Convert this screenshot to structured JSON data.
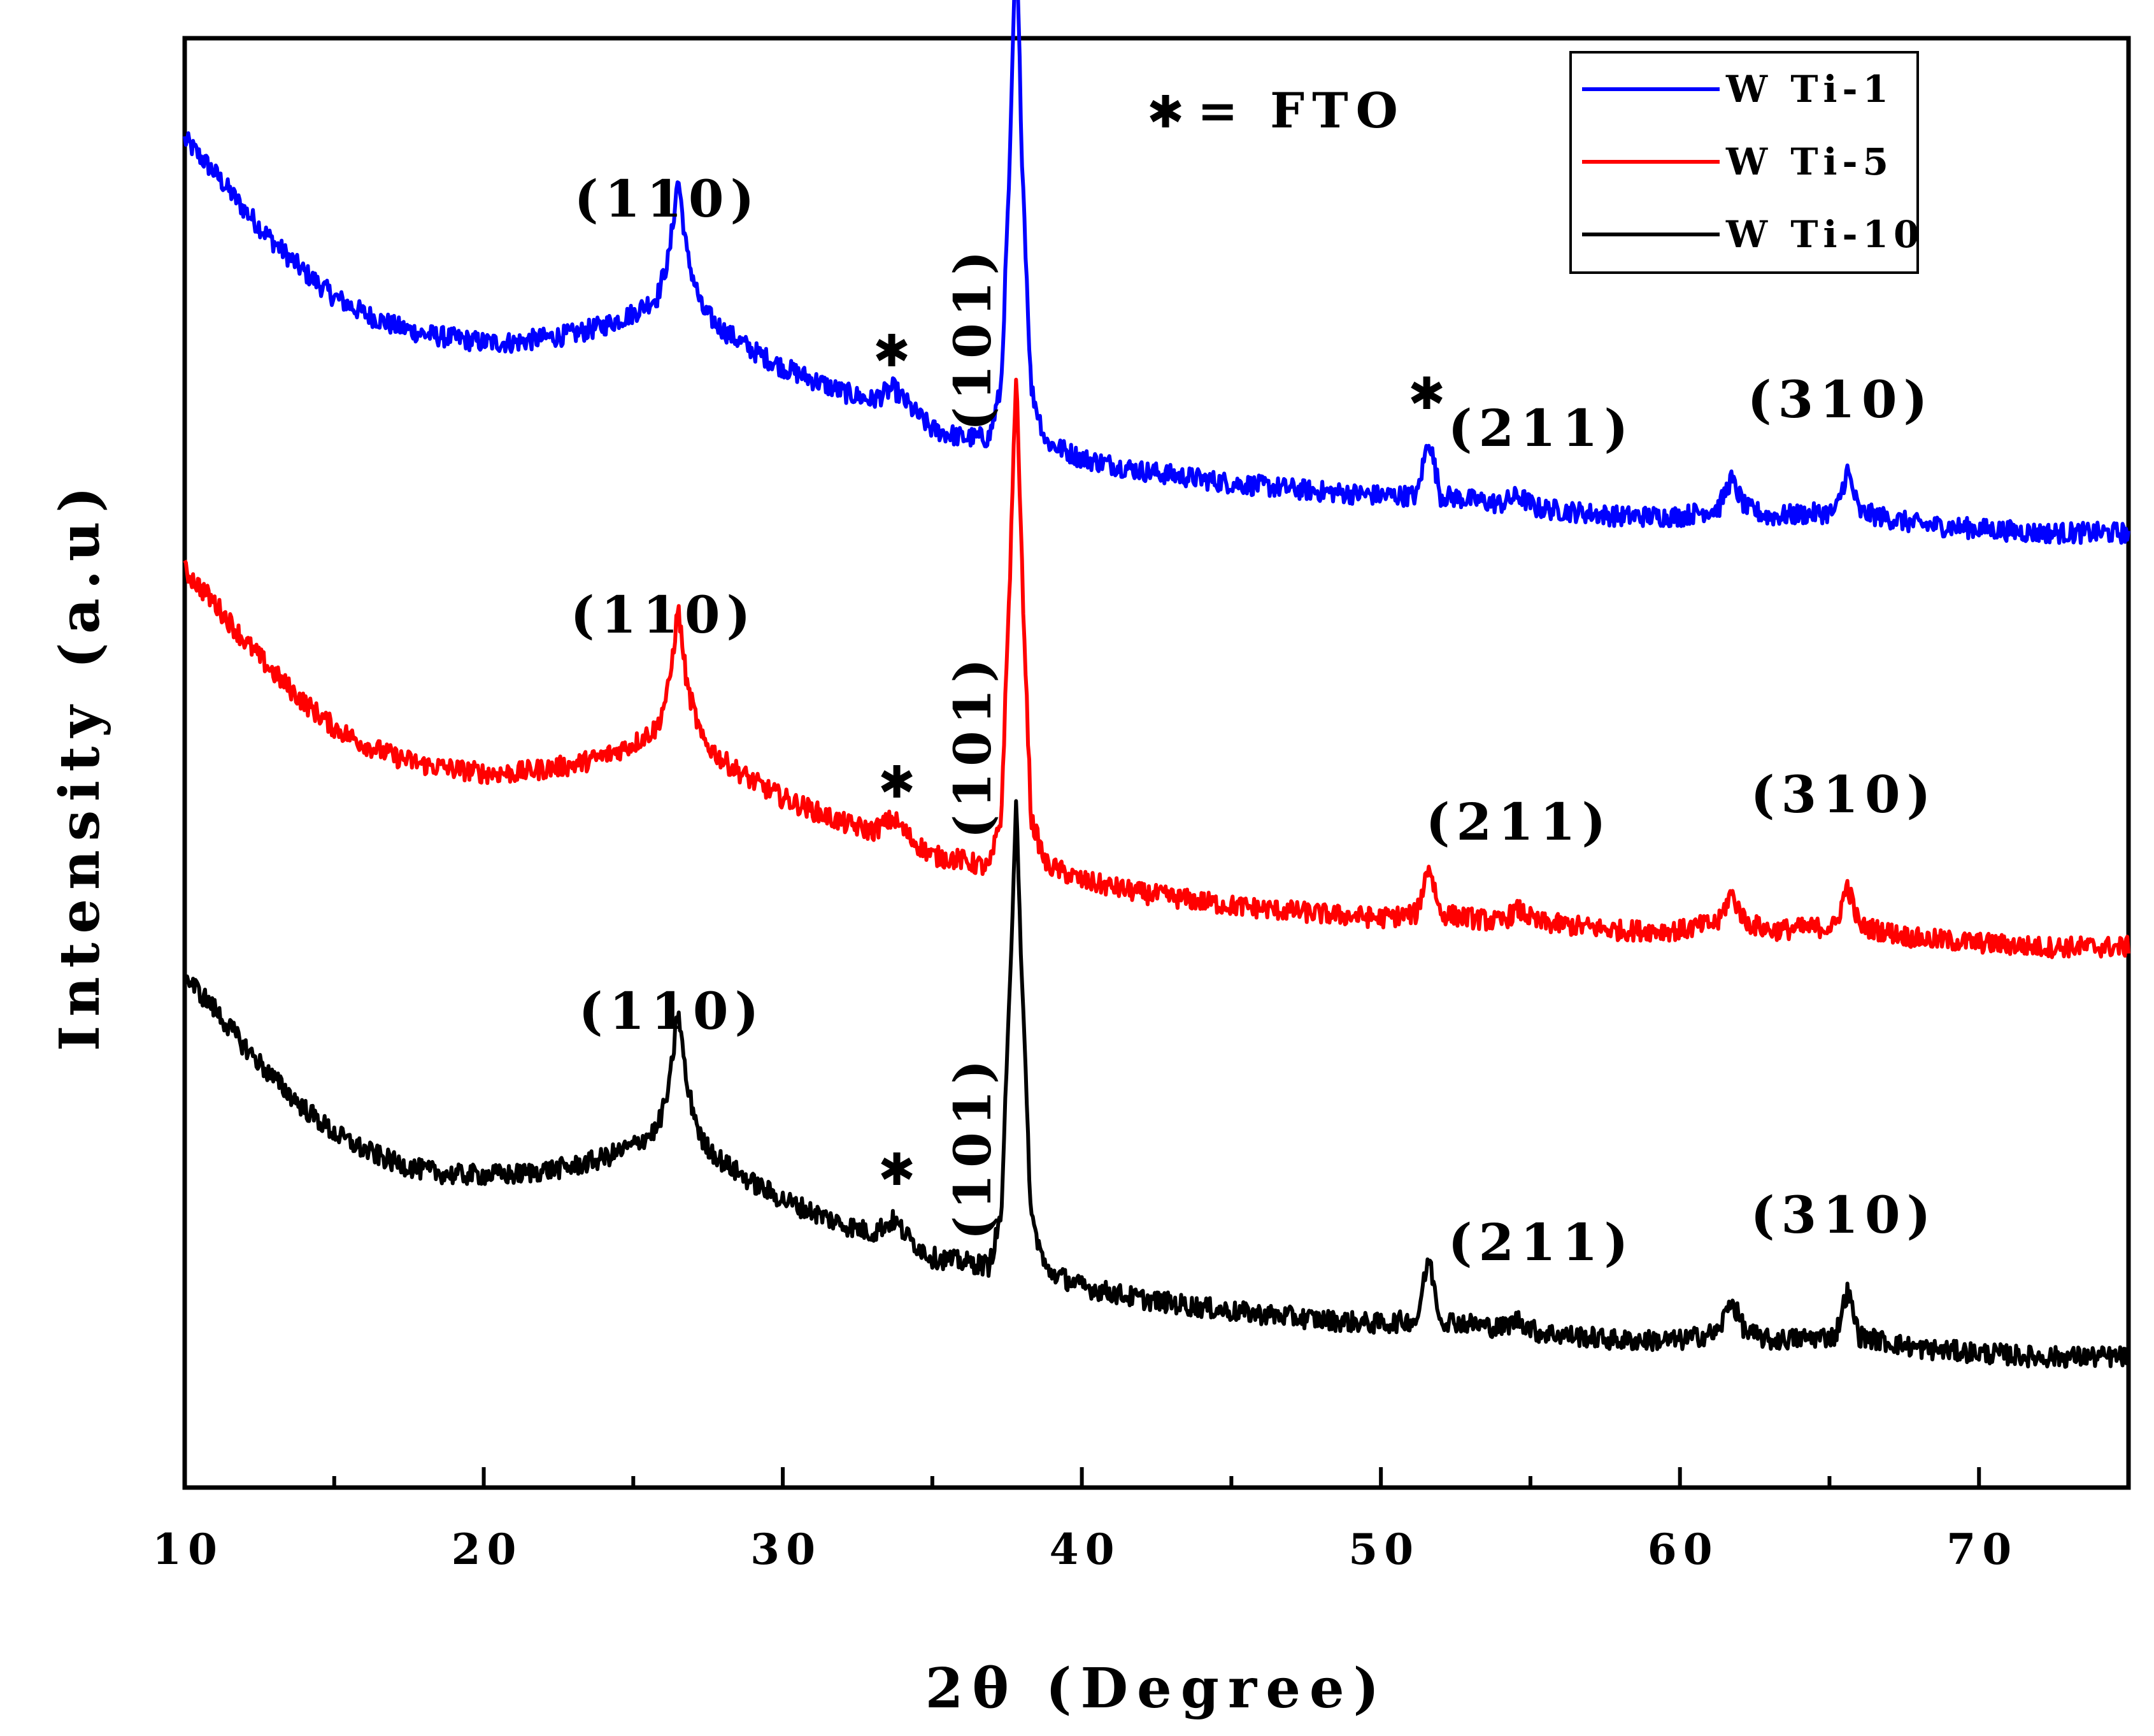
{
  "chart_data": {
    "type": "line",
    "title": "",
    "xlabel": "2θ (Degree)",
    "ylabel": "Intensity (a.u)",
    "xlim": [
      10,
      75
    ],
    "xticks": [
      10,
      20,
      30,
      40,
      50,
      60,
      70
    ],
    "y_ticks_shown": false,
    "grid": false,
    "legend": {
      "placement": "top-right",
      "entries": [
        {
          "name": "W Ti-1",
          "color": "#0000ff"
        },
        {
          "name": "W Ti-5",
          "color": "#ff0000"
        },
        {
          "name": "W Ti-10",
          "color": "#000000"
        }
      ]
    },
    "fto_note": {
      "symbol": "✱",
      "text": "= FTO"
    },
    "series": [
      {
        "name": "W Ti-1",
        "color": "#0000ff",
        "offset": 2.0,
        "points": [
          [
            10,
            0.94
          ],
          [
            11,
            0.86
          ],
          [
            12,
            0.77
          ],
          [
            13,
            0.69
          ],
          [
            14,
            0.62
          ],
          [
            15,
            0.56
          ],
          [
            16,
            0.52
          ],
          [
            17,
            0.49
          ],
          [
            18,
            0.47
          ],
          [
            19,
            0.46
          ],
          [
            20,
            0.45
          ],
          [
            21,
            0.45
          ],
          [
            22,
            0.46
          ],
          [
            23,
            0.47
          ],
          [
            24,
            0.49
          ],
          [
            25,
            0.52
          ],
          [
            25.8,
            0.56
          ],
          [
            26.2,
            0.66
          ],
          [
            26.5,
            0.85
          ],
          [
            26.8,
            0.66
          ],
          [
            27.3,
            0.53
          ],
          [
            28,
            0.48
          ],
          [
            29,
            0.43
          ],
          [
            30,
            0.39
          ],
          [
            31,
            0.36
          ],
          [
            32,
            0.33
          ],
          [
            33,
            0.31
          ],
          [
            33.7,
            0.34
          ],
          [
            34.3,
            0.29
          ],
          [
            35,
            0.24
          ],
          [
            36,
            0.22
          ],
          [
            36.9,
            0.22
          ],
          [
            37.3,
            0.34
          ],
          [
            37.6,
            0.9
          ],
          [
            37.8,
            1.45
          ],
          [
            38,
            0.9
          ],
          [
            38.3,
            0.34
          ],
          [
            38.8,
            0.21
          ],
          [
            40,
            0.17
          ],
          [
            42,
            0.14
          ],
          [
            45,
            0.11
          ],
          [
            48,
            0.09
          ],
          [
            50,
            0.08
          ],
          [
            51.2,
            0.08
          ],
          [
            51.6,
            0.22
          ],
          [
            52,
            0.08
          ],
          [
            54,
            0.06
          ],
          [
            54.6,
            0.08
          ],
          [
            55.2,
            0.05
          ],
          [
            58,
            0.03
          ],
          [
            60,
            0.03
          ],
          [
            61.3,
            0.05
          ],
          [
            61.7,
            0.12
          ],
          [
            62.2,
            0.05
          ],
          [
            63,
            0.03
          ],
          [
            65.2,
            0.04
          ],
          [
            65.6,
            0.14
          ],
          [
            66,
            0.04
          ],
          [
            68,
            0.01
          ],
          [
            70,
            0.0
          ],
          [
            72,
            -0.01
          ],
          [
            75,
            -0.01
          ]
        ]
      },
      {
        "name": "W Ti-5",
        "color": "#ff0000",
        "offset": 1.0,
        "points": [
          [
            10,
            0.9
          ],
          [
            11,
            0.82
          ],
          [
            12,
            0.73
          ],
          [
            13,
            0.65
          ],
          [
            14,
            0.58
          ],
          [
            15,
            0.52
          ],
          [
            16,
            0.48
          ],
          [
            17,
            0.45
          ],
          [
            18,
            0.43
          ],
          [
            19,
            0.42
          ],
          [
            20,
            0.41
          ],
          [
            21,
            0.41
          ],
          [
            22,
            0.42
          ],
          [
            23,
            0.43
          ],
          [
            24,
            0.45
          ],
          [
            25,
            0.48
          ],
          [
            25.8,
            0.52
          ],
          [
            26.2,
            0.62
          ],
          [
            26.5,
            0.81
          ],
          [
            26.8,
            0.62
          ],
          [
            27.3,
            0.49
          ],
          [
            28,
            0.44
          ],
          [
            29,
            0.39
          ],
          [
            30,
            0.35
          ],
          [
            31,
            0.32
          ],
          [
            32,
            0.29
          ],
          [
            33,
            0.27
          ],
          [
            33.7,
            0.3
          ],
          [
            34.3,
            0.25
          ],
          [
            35,
            0.21
          ],
          [
            36,
            0.2
          ],
          [
            36.9,
            0.18
          ],
          [
            37.3,
            0.3
          ],
          [
            37.6,
            0.9
          ],
          [
            37.8,
            1.38
          ],
          [
            38,
            0.9
          ],
          [
            38.3,
            0.3
          ],
          [
            38.8,
            0.19
          ],
          [
            40,
            0.15
          ],
          [
            42,
            0.12
          ],
          [
            45,
            0.09
          ],
          [
            48,
            0.07
          ],
          [
            50,
            0.06
          ],
          [
            51.2,
            0.07
          ],
          [
            51.6,
            0.19
          ],
          [
            52,
            0.07
          ],
          [
            54,
            0.05
          ],
          [
            54.6,
            0.08
          ],
          [
            55.2,
            0.05
          ],
          [
            58,
            0.03
          ],
          [
            60,
            0.03
          ],
          [
            61.3,
            0.05
          ],
          [
            61.7,
            0.12
          ],
          [
            62.2,
            0.05
          ],
          [
            63,
            0.03
          ],
          [
            65.2,
            0.04
          ],
          [
            65.6,
            0.14
          ],
          [
            66,
            0.04
          ],
          [
            68,
            0.01
          ],
          [
            70,
            0.0
          ],
          [
            72,
            -0.01
          ],
          [
            75,
            -0.01
          ]
        ]
      },
      {
        "name": "W Ti-10",
        "color": "#000000",
        "offset": 0.0,
        "points": [
          [
            10,
            0.92
          ],
          [
            11,
            0.84
          ],
          [
            12,
            0.75
          ],
          [
            13,
            0.67
          ],
          [
            14,
            0.6
          ],
          [
            15,
            0.54
          ],
          [
            16,
            0.5
          ],
          [
            17,
            0.47
          ],
          [
            18,
            0.45
          ],
          [
            19,
            0.44
          ],
          [
            20,
            0.44
          ],
          [
            21,
            0.44
          ],
          [
            22,
            0.45
          ],
          [
            23,
            0.46
          ],
          [
            24,
            0.48
          ],
          [
            25,
            0.51
          ],
          [
            25.8,
            0.55
          ],
          [
            26.2,
            0.65
          ],
          [
            26.5,
            0.84
          ],
          [
            26.8,
            0.65
          ],
          [
            27.3,
            0.52
          ],
          [
            28,
            0.47
          ],
          [
            29,
            0.42
          ],
          [
            30,
            0.38
          ],
          [
            31,
            0.35
          ],
          [
            32,
            0.32
          ],
          [
            33,
            0.3
          ],
          [
            33.7,
            0.33
          ],
          [
            34.3,
            0.28
          ],
          [
            35,
            0.24
          ],
          [
            36,
            0.23
          ],
          [
            36.9,
            0.22
          ],
          [
            37.3,
            0.34
          ],
          [
            37.6,
            0.9
          ],
          [
            37.8,
            1.36
          ],
          [
            38,
            0.9
          ],
          [
            38.3,
            0.34
          ],
          [
            38.8,
            0.21
          ],
          [
            40,
            0.17
          ],
          [
            42,
            0.14
          ],
          [
            45,
            0.11
          ],
          [
            48,
            0.09
          ],
          [
            50,
            0.08
          ],
          [
            51.2,
            0.09
          ],
          [
            51.6,
            0.24
          ],
          [
            52,
            0.09
          ],
          [
            54,
            0.07
          ],
          [
            54.6,
            0.09
          ],
          [
            55.2,
            0.06
          ],
          [
            58,
            0.04
          ],
          [
            60,
            0.04
          ],
          [
            61.3,
            0.06
          ],
          [
            61.7,
            0.14
          ],
          [
            62.2,
            0.06
          ],
          [
            63,
            0.04
          ],
          [
            65.2,
            0.05
          ],
          [
            65.6,
            0.16
          ],
          [
            66,
            0.05
          ],
          [
            68,
            0.02
          ],
          [
            70,
            0.01
          ],
          [
            72,
            0.0
          ],
          [
            75,
            0.0
          ]
        ]
      }
    ],
    "peak_annotations": [
      {
        "series": "W Ti-1",
        "text": "(110)"
      },
      {
        "series": "W Ti-1",
        "text": "✱"
      },
      {
        "series": "W Ti-1",
        "text": "(101)"
      },
      {
        "series": "W Ti-1",
        "text": "✱"
      },
      {
        "series": "W Ti-1",
        "text": "(211)"
      },
      {
        "series": "W Ti-1",
        "text": "(310)"
      },
      {
        "series": "W Ti-5",
        "text": "(110)"
      },
      {
        "series": "W Ti-5",
        "text": "✱"
      },
      {
        "series": "W Ti-5",
        "text": "(101)"
      },
      {
        "series": "W Ti-5",
        "text": "(211)"
      },
      {
        "series": "W Ti-5",
        "text": "(310)"
      },
      {
        "series": "W Ti-10",
        "text": "(110)"
      },
      {
        "series": "W Ti-10",
        "text": "✱"
      },
      {
        "series": "W Ti-10",
        "text": "(101)"
      },
      {
        "series": "W Ti-10",
        "text": "(211)"
      },
      {
        "series": "W Ti-10",
        "text": "(310)"
      }
    ]
  }
}
